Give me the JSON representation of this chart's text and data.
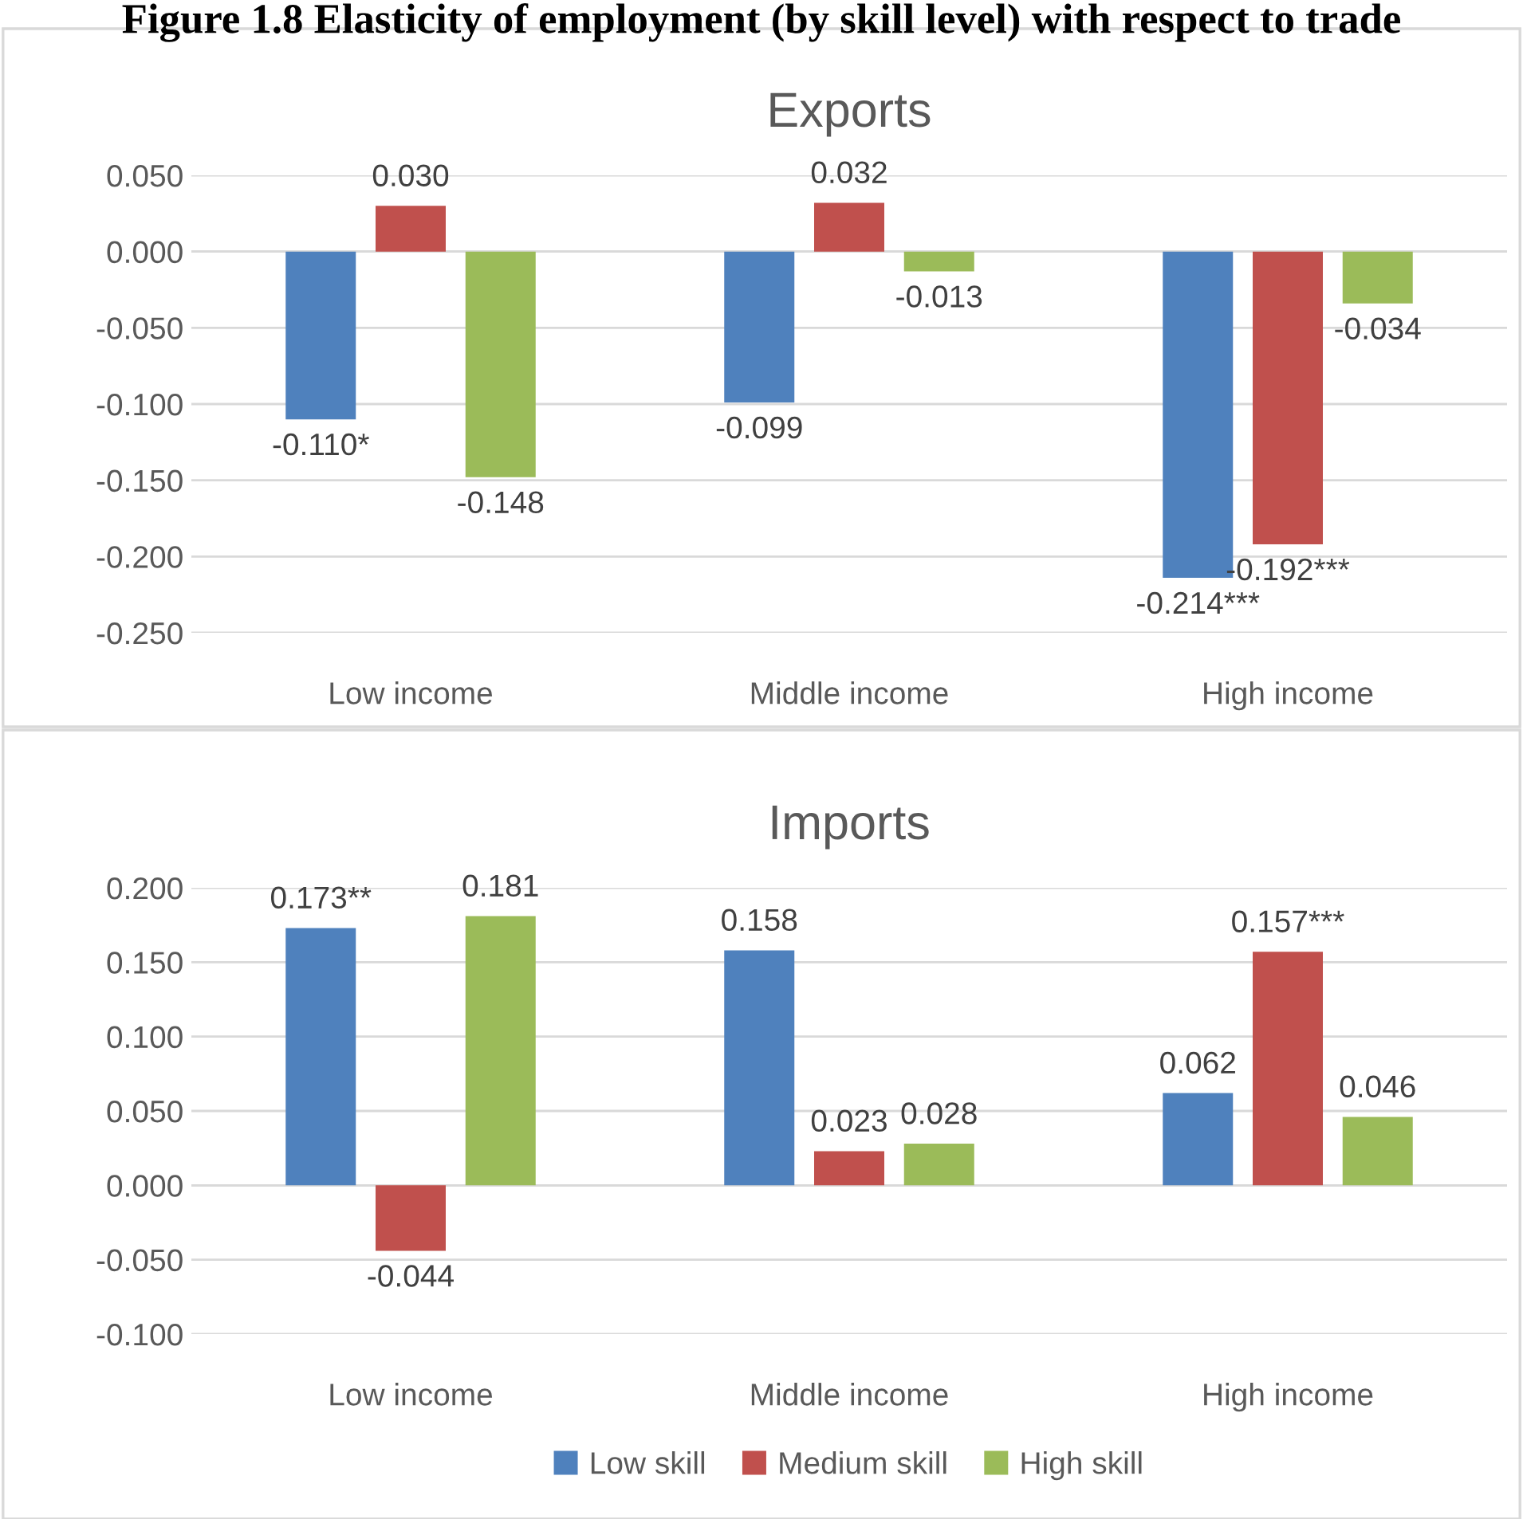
{
  "chart_data": [
    {
      "type": "bar",
      "title": "Exports",
      "annotations": [
        "Figure 1.8 Elasticity of employment (by skill level) with respect to trade"
      ],
      "categories": [
        "Low income",
        "Middle income",
        "High income"
      ],
      "series": [
        {
          "color": "#4f81bd",
          "values": [
            -0.11,
            -0.099,
            -0.214
          ],
          "value_labels": [
            "-0.110*",
            "-0.099",
            "-0.214***"
          ]
        },
        {
          "color": "#c0504d",
          "values": [
            0.03,
            0.032,
            -0.192
          ],
          "value_labels": [
            "0.030",
            "0.032",
            "-0.192***"
          ]
        },
        {
          "color": "#9bbb59",
          "values": [
            -0.148,
            -0.013,
            -0.034
          ],
          "value_labels": [
            "-0.148",
            "-0.013",
            "-0.034"
          ]
        }
      ],
      "ylim": [
        -0.25,
        0.05
      ],
      "yticks": [
        {
          "value": -0.25,
          "label": "-0.250"
        },
        {
          "value": -0.2,
          "label": "-0.200"
        },
        {
          "value": -0.15,
          "label": "-0.150"
        },
        {
          "value": -0.1,
          "label": "-0.100"
        },
        {
          "value": -0.05,
          "label": "-0.050"
        },
        {
          "value": 0,
          "label": "0.000"
        },
        {
          "value": 0.05,
          "label": "0.050"
        }
      ],
      "grid": "y",
      "legend": false
    },
    {
      "type": "bar",
      "title": "Imports",
      "categories": [
        "Low income",
        "Middle income",
        "High income"
      ],
      "series": [
        {
          "name": "Low skill",
          "color": "#4f81bd",
          "values": [
            0.173,
            0.158,
            0.062
          ],
          "value_labels": [
            "0.173**",
            "0.158",
            "0.062"
          ]
        },
        {
          "name": "Medium skill",
          "color": "#c0504d",
          "values": [
            -0.044,
            0.023,
            0.157
          ],
          "value_labels": [
            "-0.044",
            "0.023",
            "0.157***"
          ]
        },
        {
          "name": "High skill",
          "color": "#9bbb59",
          "values": [
            0.181,
            0.028,
            0.046
          ],
          "value_labels": [
            "0.181",
            "0.028",
            "0.046"
          ]
        }
      ],
      "ylim": [
        -0.1,
        0.2
      ],
      "yticks": [
        {
          "value": -0.1,
          "label": "-0.100"
        },
        {
          "value": -0.05,
          "label": "-0.050"
        },
        {
          "value": 0,
          "label": "0.000"
        },
        {
          "value": 0.05,
          "label": "0.050"
        },
        {
          "value": 0.1,
          "label": "0.100"
        },
        {
          "value": 0.15,
          "label": "0.150"
        },
        {
          "value": 0.2,
          "label": "0.200"
        }
      ],
      "grid": "y",
      "legend": "bottom"
    }
  ]
}
